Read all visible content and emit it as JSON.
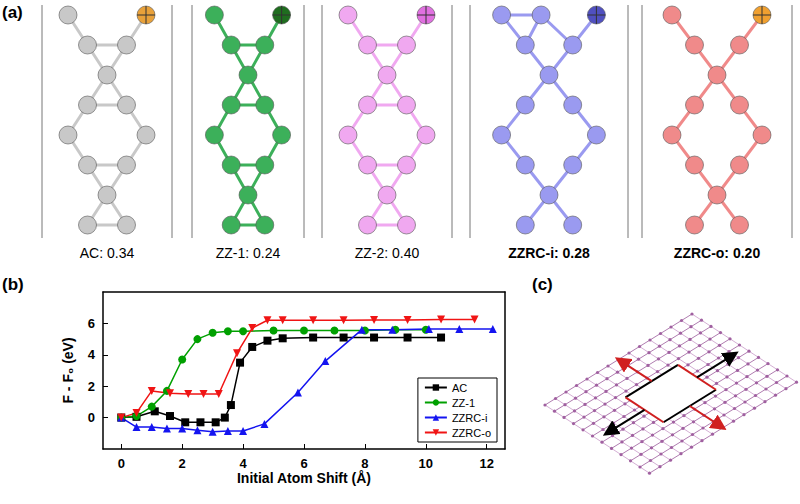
{
  "panel_labels": [
    "(a)",
    "(b)",
    "(c)"
  ],
  "structures": [
    {
      "text": "AC: 0.34",
      "color": "#c8c8c8",
      "mark": "#e8a13a"
    },
    {
      "text": "ZZ-1: 0.24",
      "color": "#3cb05a",
      "mark": "#1f6d1f"
    },
    {
      "text": "ZZ-2: 0.40",
      "color": "#f0a8f0",
      "mark": "#e070e0"
    },
    {
      "text": "ZZRC-i: 0.28",
      "color": "#9a9af0",
      "mark": "#5050c0"
    },
    {
      "text": "ZZRC-o: 0.20",
      "color": "#f08a8a",
      "mark": "#f0a030"
    }
  ],
  "chart_data": {
    "type": "line",
    "x_label": "Initial Atom Shift (Å)",
    "y_label": "F - F₀ (eV)",
    "xlim": [
      -0.6,
      12.6
    ],
    "xticks": [
      0,
      2,
      4,
      6,
      8,
      10,
      12
    ],
    "ylim": [
      -2,
      8
    ],
    "yticks": [
      0,
      2,
      4,
      6
    ],
    "legend": "lower right",
    "series": [
      {
        "name": "AC",
        "color": "#000000",
        "marker": "square",
        "x": [
          0,
          0.5,
          1.1,
          1.6,
          2.1,
          2.6,
          3.1,
          3.4,
          3.6,
          3.9,
          4.3,
          4.8,
          5.3,
          6.3,
          7.3,
          8.3,
          9.4,
          10.5
        ],
        "values": [
          0,
          0.05,
          0.4,
          0.1,
          -0.3,
          -0.3,
          -0.3,
          0.0,
          0.8,
          3.5,
          4.5,
          4.9,
          5.05,
          5.1,
          5.1,
          5.1,
          5.1,
          5.1
        ]
      },
      {
        "name": "ZZ-1",
        "color": "#00a000",
        "marker": "circle",
        "x": [
          0,
          0.5,
          1.0,
          1.5,
          2.0,
          2.5,
          3.0,
          3.5,
          4.0,
          5.0,
          6.0,
          7.0,
          8.0,
          9.0,
          10.0
        ],
        "values": [
          0,
          0.1,
          0.7,
          1.7,
          3.7,
          5.0,
          5.4,
          5.5,
          5.5,
          5.55,
          5.55,
          5.55,
          5.55,
          5.6,
          5.6
        ]
      },
      {
        "name": "ZZRC-i",
        "color": "#1414f0",
        "marker": "triangle",
        "x": [
          0,
          0.5,
          1.0,
          1.5,
          2.0,
          2.5,
          3.0,
          3.5,
          4.0,
          4.7,
          5.8,
          6.7,
          7.9,
          8.9,
          10.1,
          11.1,
          12.2
        ],
        "values": [
          0,
          -0.6,
          -0.6,
          -0.7,
          -0.7,
          -0.8,
          -0.9,
          -0.85,
          -0.85,
          -0.4,
          1.6,
          3.6,
          5.6,
          5.6,
          5.65,
          5.65,
          5.65
        ]
      },
      {
        "name": "ZZRC-o",
        "color": "#f01414",
        "marker": "triangle-down",
        "x": [
          0,
          0.5,
          1.0,
          1.6,
          2.2,
          2.7,
          3.2,
          3.8,
          4.3,
          4.8,
          5.3,
          6.3,
          7.3,
          8.3,
          9.4,
          10.5,
          11.6
        ],
        "values": [
          0,
          0.3,
          1.7,
          1.55,
          1.5,
          1.5,
          1.5,
          4.1,
          5.7,
          6.2,
          6.2,
          6.2,
          6.2,
          6.22,
          6.22,
          6.25,
          6.25
        ]
      }
    ]
  }
}
